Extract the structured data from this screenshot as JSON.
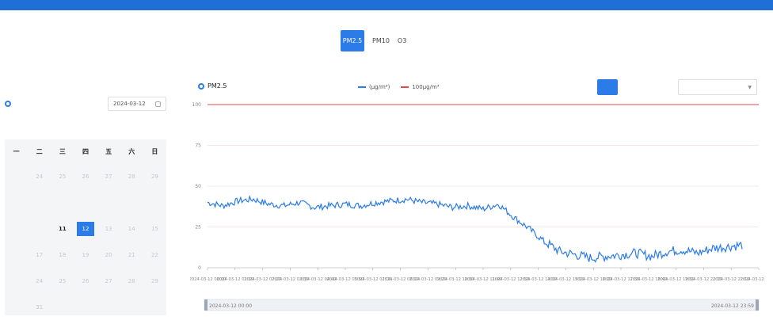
{
  "nav": {
    "items": [
      "",
      "",
      "",
      "",
      "",
      "",
      "",
      ""
    ],
    "active_index": 5
  },
  "pollutant_tabs": [
    {
      "label": "PM2.5",
      "active": true
    },
    {
      "label": "PM10",
      "active": false
    },
    {
      "label": "O3",
      "active": false
    },
    {
      "label": "",
      "active": false
    }
  ],
  "left": {
    "title": "",
    "date_value": "2024-03-12"
  },
  "calendar": {
    "weekdays": [
      "一",
      "二",
      "三",
      "四",
      "五",
      "六",
      "日"
    ],
    "rows": [
      [
        {
          "d": "",
          "s": "dim"
        },
        {
          "d": "24",
          "s": "dim"
        },
        {
          "d": "25",
          "s": "dim"
        },
        {
          "d": "26",
          "s": "dim"
        },
        {
          "d": "27",
          "s": "dim"
        },
        {
          "d": "28",
          "s": "dim"
        },
        {
          "d": "29",
          "s": "dim"
        }
      ],
      [
        {
          "d": "",
          "s": "dim"
        },
        {
          "d": "",
          "s": "act"
        },
        {
          "d": "",
          "s": "act"
        },
        {
          "d": "",
          "s": "act"
        },
        {
          "d": "",
          "s": "act"
        },
        {
          "d": "",
          "s": "act"
        },
        {
          "d": "",
          "s": "act"
        }
      ],
      [
        {
          "d": "",
          "s": "act"
        },
        {
          "d": "",
          "s": "act"
        },
        {
          "d": "11",
          "s": "act"
        },
        {
          "d": "12",
          "s": "sel"
        },
        {
          "d": "13",
          "s": "dim"
        },
        {
          "d": "14",
          "s": "dim"
        },
        {
          "d": "15",
          "s": "dim"
        }
      ],
      [
        {
          "d": "",
          "s": "dim"
        },
        {
          "d": "17",
          "s": "dim"
        },
        {
          "d": "18",
          "s": "dim"
        },
        {
          "d": "19",
          "s": "dim"
        },
        {
          "d": "20",
          "s": "dim"
        },
        {
          "d": "21",
          "s": "dim"
        },
        {
          "d": "22",
          "s": "dim"
        }
      ],
      [
        {
          "d": "",
          "s": "dim"
        },
        {
          "d": "24",
          "s": "dim"
        },
        {
          "d": "25",
          "s": "dim"
        },
        {
          "d": "26",
          "s": "dim"
        },
        {
          "d": "27",
          "s": "dim"
        },
        {
          "d": "28",
          "s": "dim"
        },
        {
          "d": "29",
          "s": "dim"
        }
      ],
      [
        {
          "d": "",
          "s": "dim"
        },
        {
          "d": "31",
          "s": "dim"
        },
        {
          "d": "",
          "s": "dim"
        },
        {
          "d": "",
          "s": "dim"
        },
        {
          "d": "",
          "s": "dim"
        },
        {
          "d": "",
          "s": "dim"
        },
        {
          "d": "",
          "s": "dim"
        }
      ]
    ]
  },
  "chart_header": {
    "title": "PM2.5",
    "legend": [
      {
        "label": "(μg/m³)",
        "color": "#2b7be8"
      },
      {
        "label": "100μg/m³",
        "color": "#e0484f"
      }
    ],
    "buttons": [
      {
        "label": "",
        "active": true
      },
      {
        "label": "",
        "active": false
      },
      {
        "label": "",
        "active": false
      }
    ],
    "region_select": ""
  },
  "chart_data": {
    "type": "line",
    "title": "PM2.5",
    "ylim": [
      0,
      100
    ],
    "yticks": [
      "0",
      "25",
      "50",
      "75",
      "100"
    ],
    "threshold": 100,
    "x": [
      "00:00",
      "00:40",
      "01:20",
      "02:00",
      "02:40",
      "03:20",
      "04:00",
      "04:40",
      "05:20",
      "06:00",
      "06:40",
      "07:20",
      "08:00",
      "08:40",
      "09:20",
      "10:00",
      "10:40",
      "11:20",
      "12:00",
      "12:40",
      "13:20",
      "14:00",
      "14:40",
      "15:20",
      "15:40",
      "16:20",
      "17:00",
      "17:40",
      "18:20",
      "19:00",
      "19:40",
      "20:20",
      "21:00",
      "21:40",
      "22:20",
      "23:00",
      "23:40"
    ],
    "xtick_labels": [
      "2024-03-12 00:00",
      "2024-03-12 01:10",
      "2024-03-12 02:20",
      "2024-03-12 03:30",
      "2024-03-12 04:40",
      "2024-03-12 05:50",
      "2024-03-12 07:00",
      "2024-03-12 08:10",
      "2024-03-12 09:20",
      "2024-03-12 10:30",
      "2024-03-12 11:40",
      "2024-03-12 12:50",
      "2024-03-12 14:00",
      "2024-03-12 15:10",
      "2024-03-12 16:20",
      "2024-03-12 17:30",
      "2024-03-12 18:40",
      "2024-03-12 19:50",
      "2024-03-12 21:00",
      "2024-03-12 22:10",
      "2024-03-12 23:20"
    ],
    "series": [
      {
        "color": "#2b7be8",
        "values": [
          40,
          38,
          41,
          42,
          39,
          38,
          40,
          37,
          38,
          39,
          38,
          40,
          41,
          42,
          40,
          39,
          37,
          38,
          36,
          39,
          31,
          24,
          16,
          10,
          8,
          6,
          7,
          8,
          9,
          7,
          10,
          11,
          9,
          12,
          13,
          14,
          null
        ]
      }
    ],
    "scrollbar_start": "2024-03-12 00:00",
    "scrollbar_end": "2024-03-12 23:59",
    "grid": true
  }
}
